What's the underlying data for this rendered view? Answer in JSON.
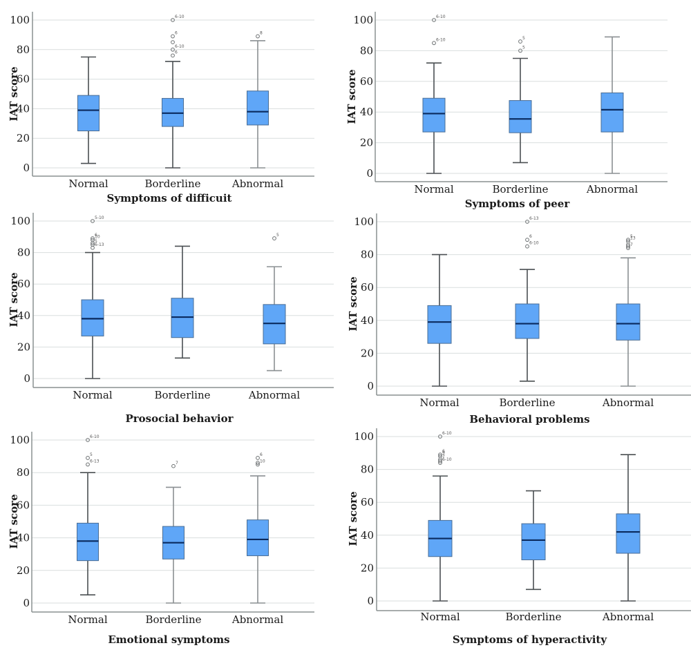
{
  "chart_data": [
    {
      "type": "box",
      "title": "",
      "xlabel": "Symptoms of difficuit",
      "ylabel": "IAT score",
      "categories": [
        "Normal",
        "Borderline",
        "Abnormal"
      ],
      "yticks": [
        0,
        20,
        40,
        60,
        80,
        100
      ],
      "ylim": [
        -4,
        104
      ],
      "grid": true,
      "boxes": [
        {
          "category": "Normal",
          "min": 3,
          "q1": 25,
          "median": 39,
          "q3": 49,
          "max": 75,
          "outliers": []
        },
        {
          "category": "Borderline",
          "min": 0,
          "q1": 28,
          "median": 37,
          "q3": 47,
          "max": 72,
          "outliers": [
            {
              "value": 100,
              "label": "6-10"
            },
            {
              "value": 89,
              "label": "6"
            },
            {
              "value": 85,
              "label": ""
            },
            {
              "value": 80,
              "label": "6-10"
            },
            {
              "value": 76,
              "label": "6"
            }
          ]
        },
        {
          "category": "Abnormal",
          "min": 0,
          "q1": 29,
          "median": 38,
          "q3": 52,
          "max": 86,
          "outliers": [
            {
              "value": 89,
              "label": "8"
            }
          ]
        }
      ]
    },
    {
      "type": "box",
      "title": "",
      "xlabel": "Symptoms of peer",
      "ylabel": "IAT score",
      "categories": [
        "Normal",
        "Borderline",
        "Abnormal"
      ],
      "yticks": [
        0,
        20,
        40,
        60,
        80,
        100
      ],
      "ylim": [
        -5,
        105
      ],
      "grid": true,
      "boxes": [
        {
          "category": "Normal",
          "min": 0,
          "q1": 27,
          "median": 39,
          "q3": 49,
          "max": 72,
          "outliers": [
            {
              "value": 100,
              "label": "6-10"
            },
            {
              "value": 85,
              "label": "6-10"
            }
          ]
        },
        {
          "category": "Borderline",
          "min": 7,
          "q1": 26.5,
          "median": 35.5,
          "q3": 47.5,
          "max": 75,
          "outliers": [
            {
              "value": 86,
              "label": "5"
            },
            {
              "value": 80,
              "label": "5"
            }
          ]
        },
        {
          "category": "Abnormal",
          "min": 0,
          "q1": 27,
          "median": 41.5,
          "q3": 52.5,
          "max": 89,
          "outliers": []
        }
      ]
    },
    {
      "type": "box",
      "title": "",
      "xlabel": "Prosocial behavior",
      "ylabel": "IAT score",
      "categories": [
        "Normal",
        "Borderline",
        "Abnormal"
      ],
      "yticks": [
        0,
        20,
        40,
        60,
        80,
        100
      ],
      "ylim": [
        -5,
        105
      ],
      "grid": true,
      "boxes": [
        {
          "category": "Normal",
          "min": 0,
          "q1": 27,
          "median": 38,
          "q3": 50,
          "max": 80,
          "outliers": [
            {
              "value": 100,
              "label": "5-10"
            },
            {
              "value": 89,
              "label": "6"
            },
            {
              "value": 88,
              "label": "10"
            },
            {
              "value": 86,
              "label": ""
            },
            {
              "value": 85,
              "label": "5"
            },
            {
              "value": 83,
              "label": "6-13"
            }
          ]
        },
        {
          "category": "Borderline",
          "min": 13,
          "q1": 26,
          "median": 39,
          "q3": 51,
          "max": 84,
          "outliers": []
        },
        {
          "category": "Abnormal",
          "min": 5,
          "q1": 22,
          "median": 35,
          "q3": 47,
          "max": 71,
          "outliers": [
            {
              "value": 89,
              "label": "5"
            }
          ]
        }
      ]
    },
    {
      "type": "box",
      "title": "",
      "xlabel": "Behavioral problems",
      "ylabel": "IAT score",
      "categories": [
        "Normal",
        "Borderline",
        "Abnormal"
      ],
      "yticks": [
        0,
        20,
        40,
        60,
        80,
        100
      ],
      "ylim": [
        -5,
        105
      ],
      "grid": true,
      "boxes": [
        {
          "category": "Normal",
          "min": 0,
          "q1": 26,
          "median": 39,
          "q3": 49,
          "max": 80,
          "outliers": []
        },
        {
          "category": "Borderline",
          "min": 3,
          "q1": 29,
          "median": 38,
          "q3": 50,
          "max": 71,
          "outliers": [
            {
              "value": 100,
              "label": "6-13"
            },
            {
              "value": 89,
              "label": "6"
            },
            {
              "value": 85,
              "label": "6-10"
            }
          ]
        },
        {
          "category": "Abnormal",
          "min": 0,
          "q1": 28,
          "median": 38,
          "q3": 50,
          "max": 78,
          "outliers": [
            {
              "value": 89,
              "label": "5"
            },
            {
              "value": 88,
              "label": "13"
            },
            {
              "value": 86,
              "label": ""
            },
            {
              "value": 85,
              "label": ""
            },
            {
              "value": 84,
              "label": "7"
            }
          ]
        }
      ]
    },
    {
      "type": "box",
      "title": "",
      "xlabel": "Emotional symptoms",
      "ylabel": "IAT score",
      "categories": [
        "Normal",
        "Borderline",
        "Abnormal"
      ],
      "yticks": [
        0,
        20,
        40,
        60,
        80,
        100
      ],
      "ylim": [
        -5,
        105
      ],
      "grid": true,
      "boxes": [
        {
          "category": "Normal",
          "min": 5,
          "q1": 26,
          "median": 38,
          "q3": 49,
          "max": 80,
          "outliers": [
            {
              "value": 100,
              "label": "6-10"
            },
            {
              "value": 89,
              "label": "5"
            },
            {
              "value": 85,
              "label": "6-13"
            }
          ]
        },
        {
          "category": "Borderline",
          "min": 0,
          "q1": 27,
          "median": 37,
          "q3": 47,
          "max": 71,
          "outliers": [
            {
              "value": 84,
              "label": "7"
            }
          ]
        },
        {
          "category": "Abnormal",
          "min": 0,
          "q1": 29,
          "median": 39,
          "q3": 51,
          "max": 78,
          "outliers": [
            {
              "value": 89,
              "label": "6"
            },
            {
              "value": 86,
              "label": ""
            },
            {
              "value": 85,
              "label": "10"
            }
          ]
        }
      ]
    },
    {
      "type": "box",
      "title": "",
      "xlabel": "Symptoms of hyperactivity",
      "ylabel": "IAT score",
      "categories": [
        "Normal",
        "Borderline",
        "Abnormal"
      ],
      "yticks": [
        0,
        20,
        40,
        60,
        80,
        100
      ],
      "ylim": [
        -5,
        105
      ],
      "grid": true,
      "boxes": [
        {
          "category": "Normal",
          "min": 0,
          "q1": 27,
          "median": 38,
          "q3": 49,
          "max": 76,
          "outliers": [
            {
              "value": 100,
              "label": "6-10"
            },
            {
              "value": 89,
              "label": "6"
            },
            {
              "value": 88,
              "label": "9"
            },
            {
              "value": 86,
              "label": "7"
            },
            {
              "value": 85,
              "label": ""
            },
            {
              "value": 84,
              "label": "6-10"
            }
          ]
        },
        {
          "category": "Borderline",
          "min": 7,
          "q1": 25,
          "median": 37,
          "q3": 47,
          "max": 67,
          "outliers": []
        },
        {
          "category": "Abnormal",
          "min": 0,
          "q1": 29,
          "median": 42,
          "q3": 53,
          "max": 89,
          "outliers": []
        }
      ]
    }
  ]
}
